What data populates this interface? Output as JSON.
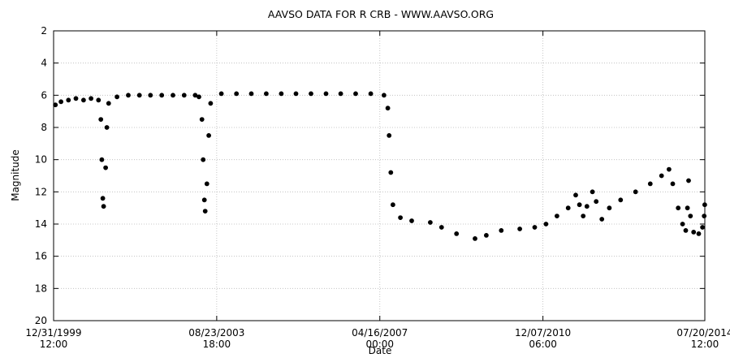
{
  "chart_data": {
    "type": "scatter",
    "title": "AAVSO DATA FOR R CRB - WWW.AAVSO.ORG",
    "xlabel": "Date",
    "ylabel": "Magnitude",
    "y_inverted": true,
    "ylim": [
      2,
      20
    ],
    "yticks": [
      2,
      4,
      6,
      8,
      10,
      12,
      14,
      16,
      18,
      20
    ],
    "xlim": [
      "1999-12-31 12:00",
      "2014-07-20 12:00"
    ],
    "xticks": [
      {
        "line1": "12/31/1999",
        "line2": "12:00",
        "date": "1999-12-31T12:00"
      },
      {
        "line1": "08/23/2003",
        "line2": "18:00",
        "date": "2003-08-23T18:00"
      },
      {
        "line1": "04/16/2007",
        "line2": "00:00",
        "date": "2007-04-16T00:00"
      },
      {
        "line1": "12/07/2010",
        "line2": "06:00",
        "date": "2010-12-07T06:00"
      },
      {
        "line1": "07/20/2014",
        "line2": "12:00",
        "date": "2014-07-20T12:00"
      }
    ],
    "grid": true,
    "marker_color": "#000000",
    "series": [
      {
        "name": "",
        "points": [
          [
            "2000-01-15",
            6.6
          ],
          [
            "2000-03-01",
            6.4
          ],
          [
            "2000-05-01",
            6.3
          ],
          [
            "2000-07-01",
            6.2
          ],
          [
            "2000-09-01",
            6.3
          ],
          [
            "2000-11-01",
            6.2
          ],
          [
            "2001-01-01",
            6.3
          ],
          [
            "2001-01-20",
            7.5
          ],
          [
            "2001-01-28",
            10.0
          ],
          [
            "2001-02-05",
            12.4
          ],
          [
            "2001-02-12",
            12.9
          ],
          [
            "2001-02-28",
            10.5
          ],
          [
            "2001-03-10",
            8.0
          ],
          [
            "2001-03-25",
            6.5
          ],
          [
            "2001-06-01",
            6.1
          ],
          [
            "2001-09-01",
            6.0
          ],
          [
            "2001-12-01",
            6.0
          ],
          [
            "2002-03-01",
            6.0
          ],
          [
            "2002-06-01",
            6.0
          ],
          [
            "2002-09-01",
            6.0
          ],
          [
            "2002-12-01",
            6.0
          ],
          [
            "2003-03-01",
            6.0
          ],
          [
            "2003-04-01",
            6.1
          ],
          [
            "2003-04-25",
            7.5
          ],
          [
            "2003-05-05",
            10.0
          ],
          [
            "2003-05-15",
            12.5
          ],
          [
            "2003-05-22",
            13.2
          ],
          [
            "2003-06-05",
            11.5
          ],
          [
            "2003-06-20",
            8.5
          ],
          [
            "2003-07-05",
            6.5
          ],
          [
            "2003-10-01",
            5.9
          ],
          [
            "2004-02-01",
            5.9
          ],
          [
            "2004-06-01",
            5.9
          ],
          [
            "2004-10-01",
            5.9
          ],
          [
            "2005-02-01",
            5.9
          ],
          [
            "2005-06-01",
            5.9
          ],
          [
            "2005-10-01",
            5.9
          ],
          [
            "2006-02-01",
            5.9
          ],
          [
            "2006-06-01",
            5.9
          ],
          [
            "2006-10-01",
            5.9
          ],
          [
            "2007-02-01",
            5.9
          ],
          [
            "2007-05-20",
            6.0
          ],
          [
            "2007-06-20",
            6.8
          ],
          [
            "2007-07-01",
            8.5
          ],
          [
            "2007-07-15",
            10.8
          ],
          [
            "2007-08-01",
            12.8
          ],
          [
            "2007-10-01",
            13.6
          ],
          [
            "2008-01-01",
            13.8
          ],
          [
            "2008-06-01",
            13.9
          ],
          [
            "2008-09-01",
            14.2
          ],
          [
            "2009-01-01",
            14.6
          ],
          [
            "2009-06-01",
            14.9
          ],
          [
            "2009-09-01",
            14.7
          ],
          [
            "2010-01-01",
            14.4
          ],
          [
            "2010-06-01",
            14.3
          ],
          [
            "2010-10-01",
            14.2
          ],
          [
            "2011-01-01",
            14.0
          ],
          [
            "2011-04-01",
            13.5
          ],
          [
            "2011-07-01",
            13.0
          ],
          [
            "2011-09-01",
            12.2
          ],
          [
            "2011-10-01",
            12.8
          ],
          [
            "2011-11-01",
            13.5
          ],
          [
            "2011-12-01",
            12.9
          ],
          [
            "2012-01-15",
            12.0
          ],
          [
            "2012-02-15",
            12.6
          ],
          [
            "2012-04-01",
            13.7
          ],
          [
            "2012-06-01",
            13.0
          ],
          [
            "2012-09-01",
            12.5
          ],
          [
            "2013-01-01",
            12.0
          ],
          [
            "2013-05-01",
            11.5
          ],
          [
            "2013-08-01",
            11.0
          ],
          [
            "2013-10-01",
            10.6
          ],
          [
            "2013-11-01",
            11.5
          ],
          [
            "2013-12-15",
            13.0
          ],
          [
            "2014-01-20",
            14.0
          ],
          [
            "2014-02-15",
            14.4
          ],
          [
            "2014-03-01",
            13.0
          ],
          [
            "2014-03-10",
            11.3
          ],
          [
            "2014-03-25",
            13.5
          ],
          [
            "2014-04-20",
            14.5
          ],
          [
            "2014-06-01",
            14.6
          ],
          [
            "2014-07-01",
            14.2
          ],
          [
            "2014-07-15",
            13.5
          ],
          [
            "2014-07-20",
            12.8
          ]
        ]
      }
    ]
  }
}
